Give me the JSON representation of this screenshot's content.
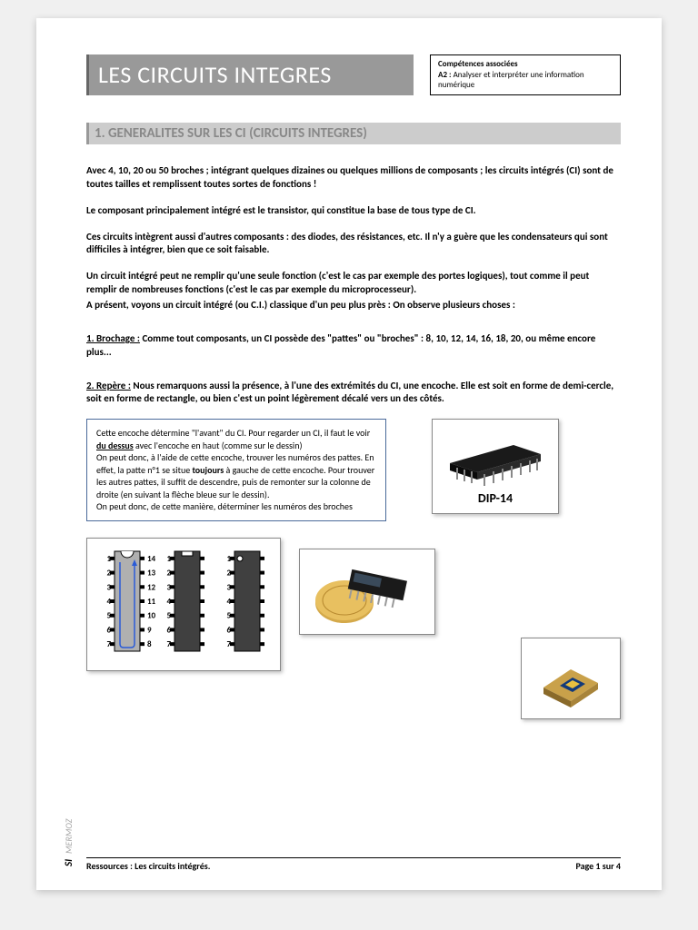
{
  "colors": {
    "page_bg": "#ffffff",
    "body_bg": "#f0f0f0",
    "title_bg": "#999999",
    "title_text": "#ffffff",
    "section_bg": "#cccccc",
    "section_text": "#888888",
    "info_border": "#4a6a9a",
    "chip_body": "#404040",
    "chip_body_alt": "#b0b0b0",
    "arrow": "#2a5bd7"
  },
  "typography": {
    "title_fontsize": 26,
    "section_fontsize": 15,
    "body_fontsize": 11,
    "info_fontsize": 10,
    "footer_fontsize": 10
  },
  "header": {
    "title": "LES CIRCUITS INTEGRES",
    "competences_label": "Compétences associées",
    "competences_code": "A2 :",
    "competences_text": "Analyser et interpréter une information numérique"
  },
  "section1": {
    "title": "1. GENERALITES SUR LES CI (CIRCUITS INTEGRES)",
    "p1": "Avec 4, 10, 20 ou 50 broches ; intégrant quelques dizaines ou quelques millions de composants ; les circuits intégrés (CI) sont de toutes tailles et remplissent toutes sortes de fonctions !",
    "p2": "Le composant principalement intégré est le transistor, qui constitue la base de tous type de CI.",
    "p3": "Ces circuits intègrent aussi d'autres composants : des diodes, des résistances, etc. Il n'y a guère que les condensateurs qui sont difficiles à intégrer, bien que ce soit faisable.",
    "p4": "Un circuit intégré peut ne remplir qu'une seule fonction (c'est le cas par exemple des portes logiques), tout comme il peut remplir de nombreuses fonctions (c'est le cas par exemple du microprocesseur).",
    "p5": "A présent, voyons un circuit intégré (ou C.I.) classique d'un peu plus près : On observe plusieurs choses :",
    "brochage_label": "1. Brochage :",
    "brochage_text": " Comme tout composants, un CI possède des \"pattes\" ou \"broches\" : 8, 10, 12, 14, 16, 18, 20, ou même encore plus...",
    "repere_label": "2. Repère :",
    "repere_text": " Nous remarquons aussi la présence, à l'une des extrémités du CI, une encoche. Elle est soit en forme de demi-cercle, soit en forme de rectangle, ou bien c'est un point légèrement décalé vers un des côtés."
  },
  "info_box": {
    "l1a": "Cette encoche détermine \"l'avant\" du CI. Pour regarder un CI, il faut le voir ",
    "l1b": "du dessus",
    "l1c": " avec l'encoche en haut (comme sur le dessin)",
    "l2a": "On peut donc, à l'aide de cette encoche, trouver les numéros des pattes. En effet, la patte n°1 se situe ",
    "l2b": "toujours",
    "l2c": " à gauche de cette encoche. Pour trouver les autres pattes, il suffit de descendre, puis de remonter sur la colonne de droite (en suivant la flèche bleue sur le dessin).",
    "l3": "On peut donc, de cette manière, déterminer les numéros des broches"
  },
  "dip_label": "DIP-14",
  "pin_diagram": {
    "left_pins": [
      1,
      2,
      3,
      4,
      5,
      6,
      7
    ],
    "right_pins": [
      14,
      13,
      12,
      11,
      10,
      9,
      8
    ],
    "variants": [
      {
        "body_fill": "#b0b0b0",
        "notch": "semicircle",
        "show_right_numbers": true,
        "show_arrow": true,
        "dot": false
      },
      {
        "body_fill": "#404040",
        "notch": "rect",
        "show_right_numbers": false,
        "show_arrow": false,
        "dot": false
      },
      {
        "body_fill": "#404040",
        "notch": "none",
        "show_right_numbers": false,
        "show_arrow": false,
        "dot": true
      }
    ]
  },
  "footer": {
    "left": "Ressources : Les circuits intégrés.",
    "right": "Page 1 sur 4",
    "side_si": "SI",
    "side_mermoz": "MERMOZ"
  }
}
